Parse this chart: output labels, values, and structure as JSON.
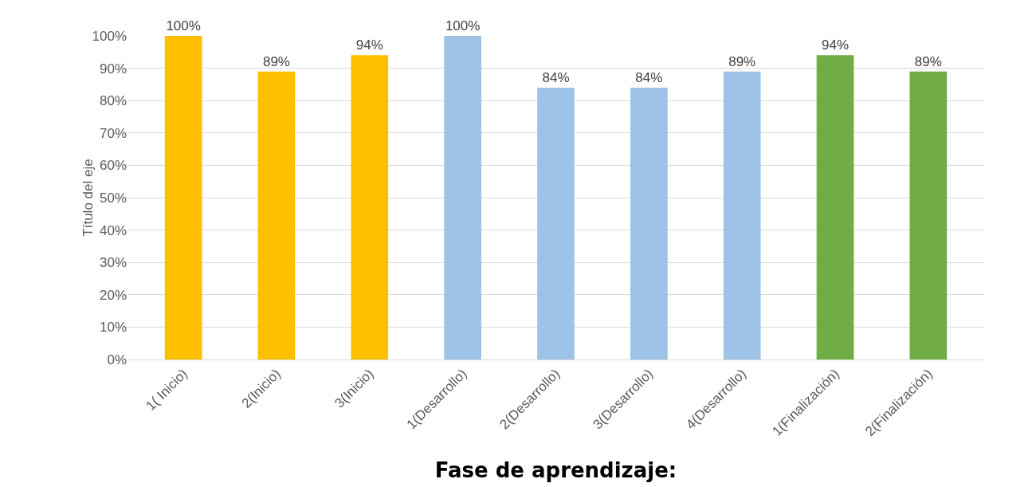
{
  "chart_data": {
    "type": "bar",
    "categories": [
      "1( Inicio)",
      "2(Inicio)",
      "3(Inicio)",
      "1(Desarrollo)",
      "2(Desarrollo)",
      "3(Desarrollo)",
      "4(Desarrollo)",
      "1(Finalización)",
      "2(Finalización)"
    ],
    "values": [
      100,
      89,
      94,
      100,
      84,
      84,
      89,
      94,
      89
    ],
    "colors": [
      "#ffc000",
      "#ffc000",
      "#ffc000",
      "#9dc3e6",
      "#9dc3e6",
      "#9dc3e6",
      "#9dc3e6",
      "#70ad47",
      "#70ad47"
    ],
    "value_labels": [
      "100%",
      "89%",
      "94%",
      "100%",
      "84%",
      "84%",
      "89%",
      "94%",
      "89%"
    ],
    "ylabel": "Título del eje",
    "xlabel": "Fase de aprendizaje:",
    "ylim": [
      0,
      100
    ],
    "yticks": [
      {
        "value": 0,
        "label": "0%"
      },
      {
        "value": 10,
        "label": "10%"
      },
      {
        "value": 20,
        "label": "20%"
      },
      {
        "value": 30,
        "label": "30%"
      },
      {
        "value": 40,
        "label": "40%"
      },
      {
        "value": 50,
        "label": "50%"
      },
      {
        "value": 60,
        "label": "60%"
      },
      {
        "value": 70,
        "label": "70%"
      },
      {
        "value": 80,
        "label": "80%"
      },
      {
        "value": 90,
        "label": "90%"
      },
      {
        "value": 100,
        "label": "100%"
      }
    ],
    "grid": "y"
  }
}
